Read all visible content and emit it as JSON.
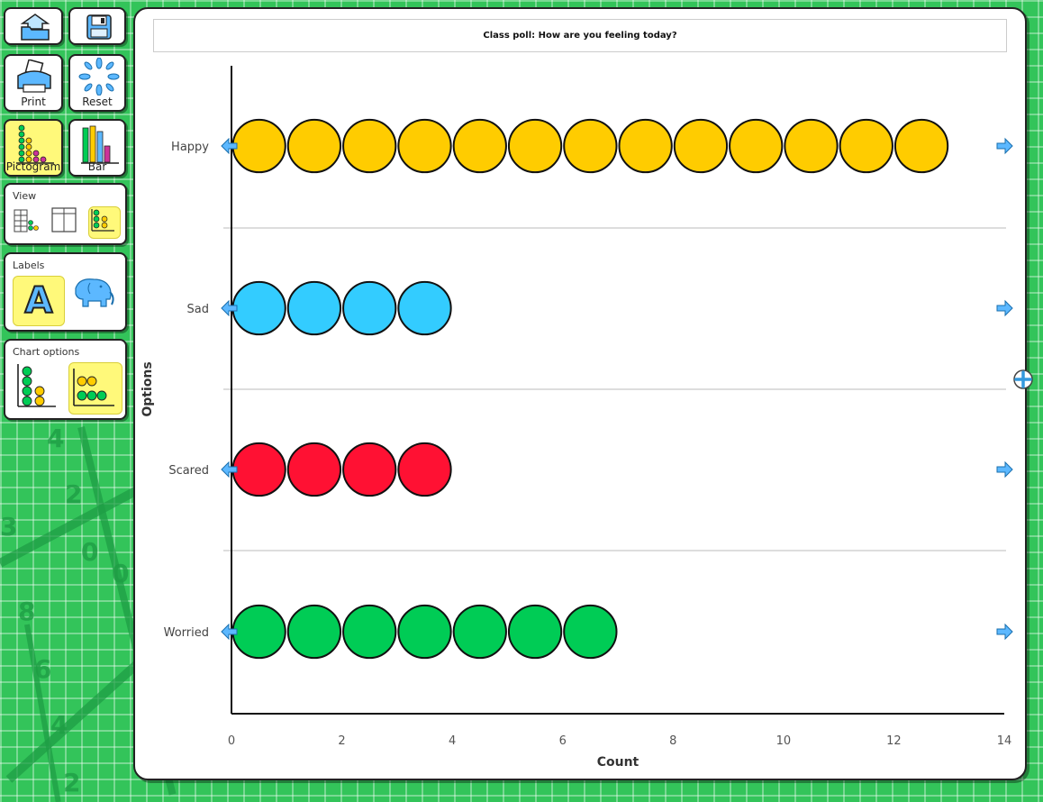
{
  "toolbar": {
    "print_label": "Print",
    "reset_label": "Reset",
    "pictogram_label": "Pictogram",
    "bar_label": "Bar"
  },
  "panels": {
    "view_title": "View",
    "labels_title": "Labels",
    "label_letter": "A",
    "chart_options_title": "Chart options"
  },
  "colors": {
    "happy": "#ffcc00",
    "sad": "#33ccff",
    "scared": "#ff1133",
    "worried": "#00cc55",
    "selected": "#fff97a",
    "background": "#33c45a"
  },
  "chart_data": {
    "type": "pictogram",
    "title": "Class poll: How are you feeling today?",
    "xlabel": "Count",
    "ylabel": "Options",
    "categories": [
      "Happy",
      "Sad",
      "Scared",
      "Worried"
    ],
    "values": [
      13,
      4,
      4,
      7
    ],
    "xlim": [
      0,
      14
    ],
    "xticks": [
      0,
      2,
      4,
      6,
      8,
      10,
      12,
      14
    ],
    "orientation": "horizontal"
  }
}
